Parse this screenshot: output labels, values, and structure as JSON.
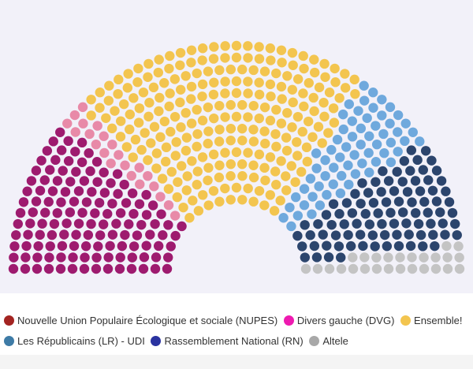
{
  "chart_data": {
    "type": "hemicycle",
    "total_seats": 577,
    "parties": [
      {
        "name": "Nouvelle Union Populaire Écologique et sociale (NUPES)",
        "seats": 131,
        "dot_color": "#9e1b6f",
        "legend_color": "#a32421"
      },
      {
        "name": "Divers gauche (DVG)",
        "seats": 22,
        "dot_color": "#e88aa8",
        "legend_color": "#ee1ab0"
      },
      {
        "name": "Ensemble!",
        "seats": 245,
        "dot_color": "#f3c54f",
        "legend_color": "#f3c54f"
      },
      {
        "name": "Les Républicains (LR) - UDI",
        "seats": 64,
        "dot_color": "#6fa9dd",
        "legend_color": "#3e7ba6"
      },
      {
        "name": "Rassemblement National (RN)",
        "seats": 89,
        "dot_color": "#2c456d",
        "legend_color": "#2a33a0"
      },
      {
        "name": "Altele",
        "seats": 26,
        "dot_color": "#c4c4c4",
        "legend_color": "#a8a8a8"
      }
    ]
  },
  "legend": {
    "rows": [
      [
        {
          "label": "Nouvelle Union Populaire Écologique et sociale (NUPES)",
          "color": "#a32421"
        },
        {
          "label": "Divers gauche (DVG)",
          "color": "#ee1ab0"
        },
        {
          "label": "Ensemble!",
          "color": "#f3c54f"
        }
      ],
      [
        {
          "label": "Les Républicains (LR) - UDI",
          "color": "#3e7ba6"
        },
        {
          "label": "Rassemblement National (RN)",
          "color": "#2a33a0"
        },
        {
          "label": "Altele",
          "color": "#a8a8a8"
        }
      ]
    ]
  }
}
